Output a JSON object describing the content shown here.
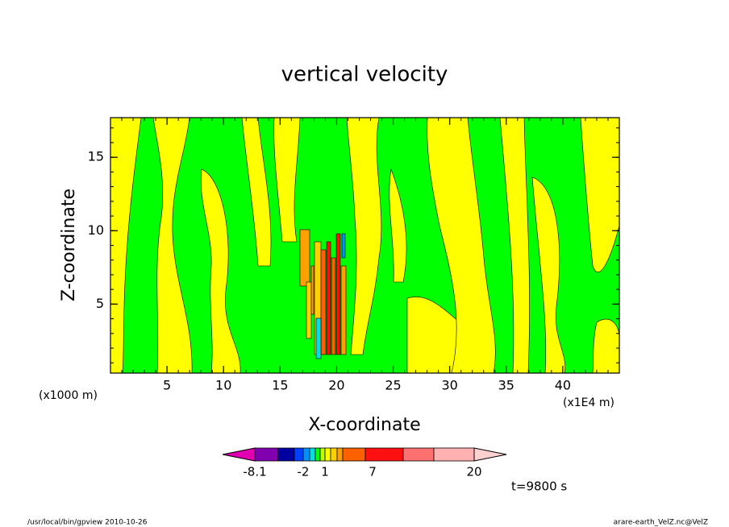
{
  "chart_data": {
    "type": "contour",
    "title": "vertical velocity",
    "x_label": "X-coordinate",
    "y_label": "Z-coordinate",
    "x_unit_left": "(x1000 m)",
    "x_unit_right": "(x1E4 m)",
    "xlim": [
      0,
      45
    ],
    "xticks": [
      5,
      10,
      15,
      20,
      25,
      30,
      35,
      40
    ],
    "ylim": [
      0.3,
      17.7
    ],
    "yticks": [
      5,
      10,
      15
    ],
    "colorbar": {
      "colors": [
        "#e000b0",
        "#8000b0",
        "#0000a0",
        "#0040ff",
        "#0090ff",
        "#00e0e0",
        "#00ff00",
        "#c0ff00",
        "#ffff00",
        "#ffd000",
        "#ffa000",
        "#ff6000",
        "#ff1010",
        "#ff7070",
        "#ffb0b0",
        "#ffd0d0"
      ],
      "ticks": [
        -8.1,
        -2,
        1,
        7,
        20
      ]
    },
    "time_label": "t=9800 s",
    "footer_left": "/usr/local/bin/gpview  2010-10-26",
    "footer_right": "arare-earth_VelZ.nc@VelZ"
  }
}
